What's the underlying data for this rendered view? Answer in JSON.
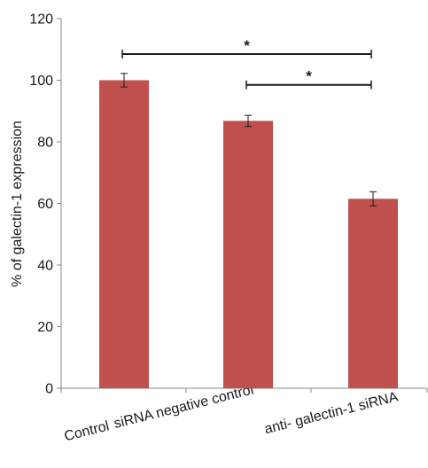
{
  "chart_data": {
    "type": "bar",
    "title": "",
    "xlabel": "",
    "ylabel": "% of galectin-1 expression",
    "categories": [
      "Control",
      "siRNA negative control",
      "anti- galectin-1 siRNA"
    ],
    "values": [
      100,
      86.8,
      61.5
    ],
    "error": [
      2.2,
      1.8,
      2.3
    ],
    "ylim": [
      0,
      120
    ],
    "yticks": [
      0,
      20,
      40,
      60,
      80,
      100,
      120
    ],
    "ytick_labels": [
      "0",
      "20",
      "40",
      "60",
      "80",
      "100",
      "120"
    ],
    "grid": false,
    "legend": "none",
    "bar_color": "#c0504d",
    "significance": [
      {
        "from": 0,
        "to": 2,
        "level": 108.5,
        "label": "*"
      },
      {
        "from": 1,
        "to": 2,
        "level": 98.5,
        "label": "*"
      }
    ]
  }
}
